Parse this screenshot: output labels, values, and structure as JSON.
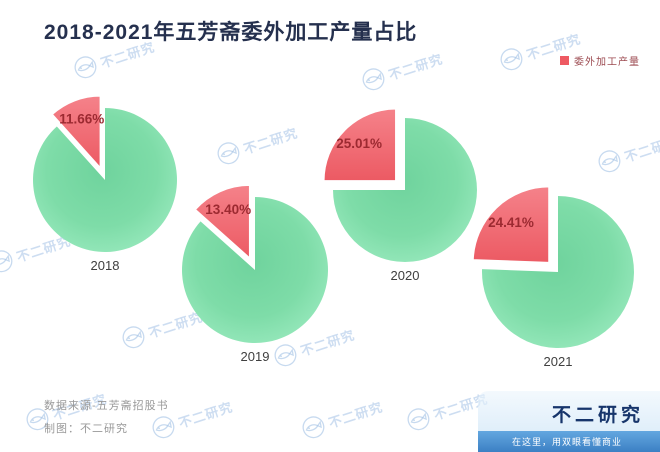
{
  "title": "2018-2021年五芳斋委外加工产量占比",
  "legend": {
    "label": "委外加工产量",
    "color": "#ee5a62"
  },
  "chart_data": {
    "type": "pie",
    "title": "2018-2021年五芳斋委外加工产量占比",
    "legend_entries": [
      "委外加工产量"
    ],
    "unit": "%",
    "pies": [
      {
        "year": "2018",
        "label": "11.66%",
        "value": 11.66
      },
      {
        "year": "2019",
        "label": "13.40%",
        "value": 13.4
      },
      {
        "year": "2020",
        "label": "25.01%",
        "value": 25.01
      },
      {
        "year": "2021",
        "label": "24.41%",
        "value": 24.41
      }
    ],
    "colors": {
      "remainder": "#7edca8",
      "highlight": "#ee5a62"
    },
    "layout_hint": "four exploded-slice pies, highlight slice starts at 12 o'clock going counter-clockwise"
  },
  "footer": {
    "source": "数据来源-五芳斋招股书",
    "credit": "制图：不二研究"
  },
  "brand": {
    "name": "不二研究",
    "tagline": "在这里，用双眼看懂商业"
  },
  "watermark": {
    "text": "不二研究"
  }
}
